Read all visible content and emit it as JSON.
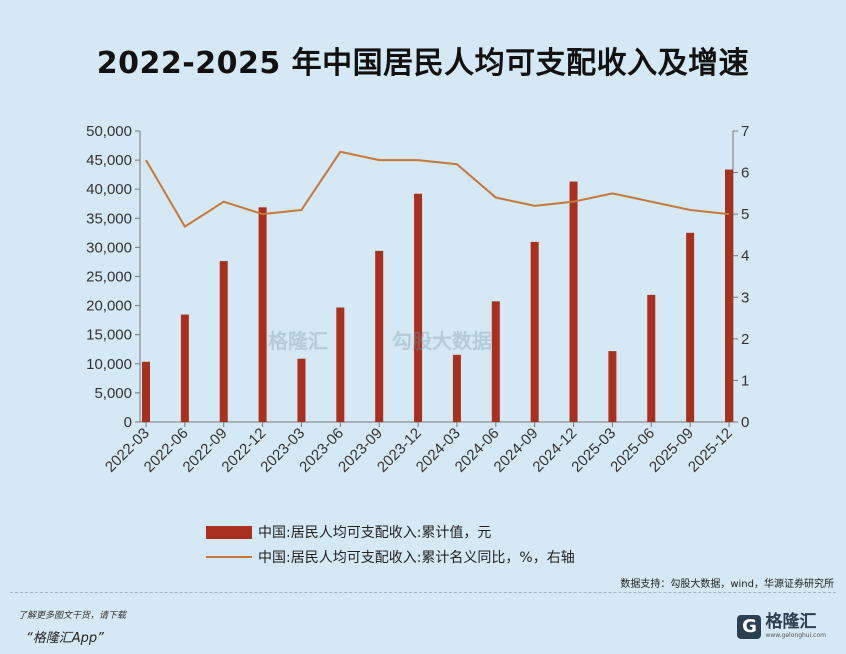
{
  "title": "2022-2025 年中国居民人均可支配收入及增速",
  "chart_data": {
    "type": "bar",
    "categories": [
      "2022-03",
      "2022-06",
      "2022-09",
      "2022-12",
      "2023-03",
      "2023-06",
      "2023-09",
      "2023-12",
      "2024-03",
      "2024-06",
      "2024-09",
      "2024-12",
      "2025-03",
      "2025-06",
      "2025-09",
      "2025-12"
    ],
    "series": [
      {
        "name": "中国:居民人均可支配收入:累计值，元",
        "type": "bar",
        "axis": "left",
        "color": "#a8301c",
        "values": [
          10345,
          18463,
          27650,
          36883,
          10870,
          19672,
          29398,
          39218,
          11539,
          20733,
          30941,
          41314,
          12179,
          21840,
          32509,
          43377
        ]
      },
      {
        "name": "中国:居民人均可支配收入:累计名义同比，%，右轴",
        "type": "line",
        "axis": "right",
        "color": "#c8763a",
        "values": [
          6.3,
          4.7,
          5.3,
          5.0,
          5.1,
          6.5,
          6.3,
          6.3,
          6.2,
          5.4,
          5.2,
          5.3,
          5.5,
          5.3,
          5.1,
          5.0
        ]
      }
    ],
    "y_left": {
      "min": 0,
      "max": 50000,
      "step": 5000,
      "tick_labels": [
        "0",
        "5,000",
        "10,000",
        "15,000",
        "20,000",
        "25,000",
        "30,000",
        "35,000",
        "40,000",
        "45,000",
        "50,000"
      ]
    },
    "y_right": {
      "min": 0,
      "max": 7,
      "step": 1,
      "tick_labels": [
        "0",
        "1",
        "2",
        "3",
        "4",
        "5",
        "6",
        "7"
      ]
    },
    "grid": false,
    "legend_position": "bottom"
  },
  "legend": {
    "bar_label": "中国:居民人均可支配收入:累计值，元",
    "line_label": "中国:居民人均可支配收入:累计名义同比，%，右轴"
  },
  "source": "数据支持：勾股大数据，wind，华源证券研究所",
  "watermark": {
    "left": "格隆汇",
    "right": "勾股大数据"
  },
  "footer": {
    "promo_line1": "了解更多图文干货，请下载",
    "promo_line2": "“格隆汇App”",
    "brand_mark": "G",
    "brand_name": "格隆汇",
    "brand_url": "www.gelonghui.com"
  },
  "colors": {
    "background": "#d4e9f5",
    "bar": "#a8301c",
    "line": "#c8763a"
  }
}
